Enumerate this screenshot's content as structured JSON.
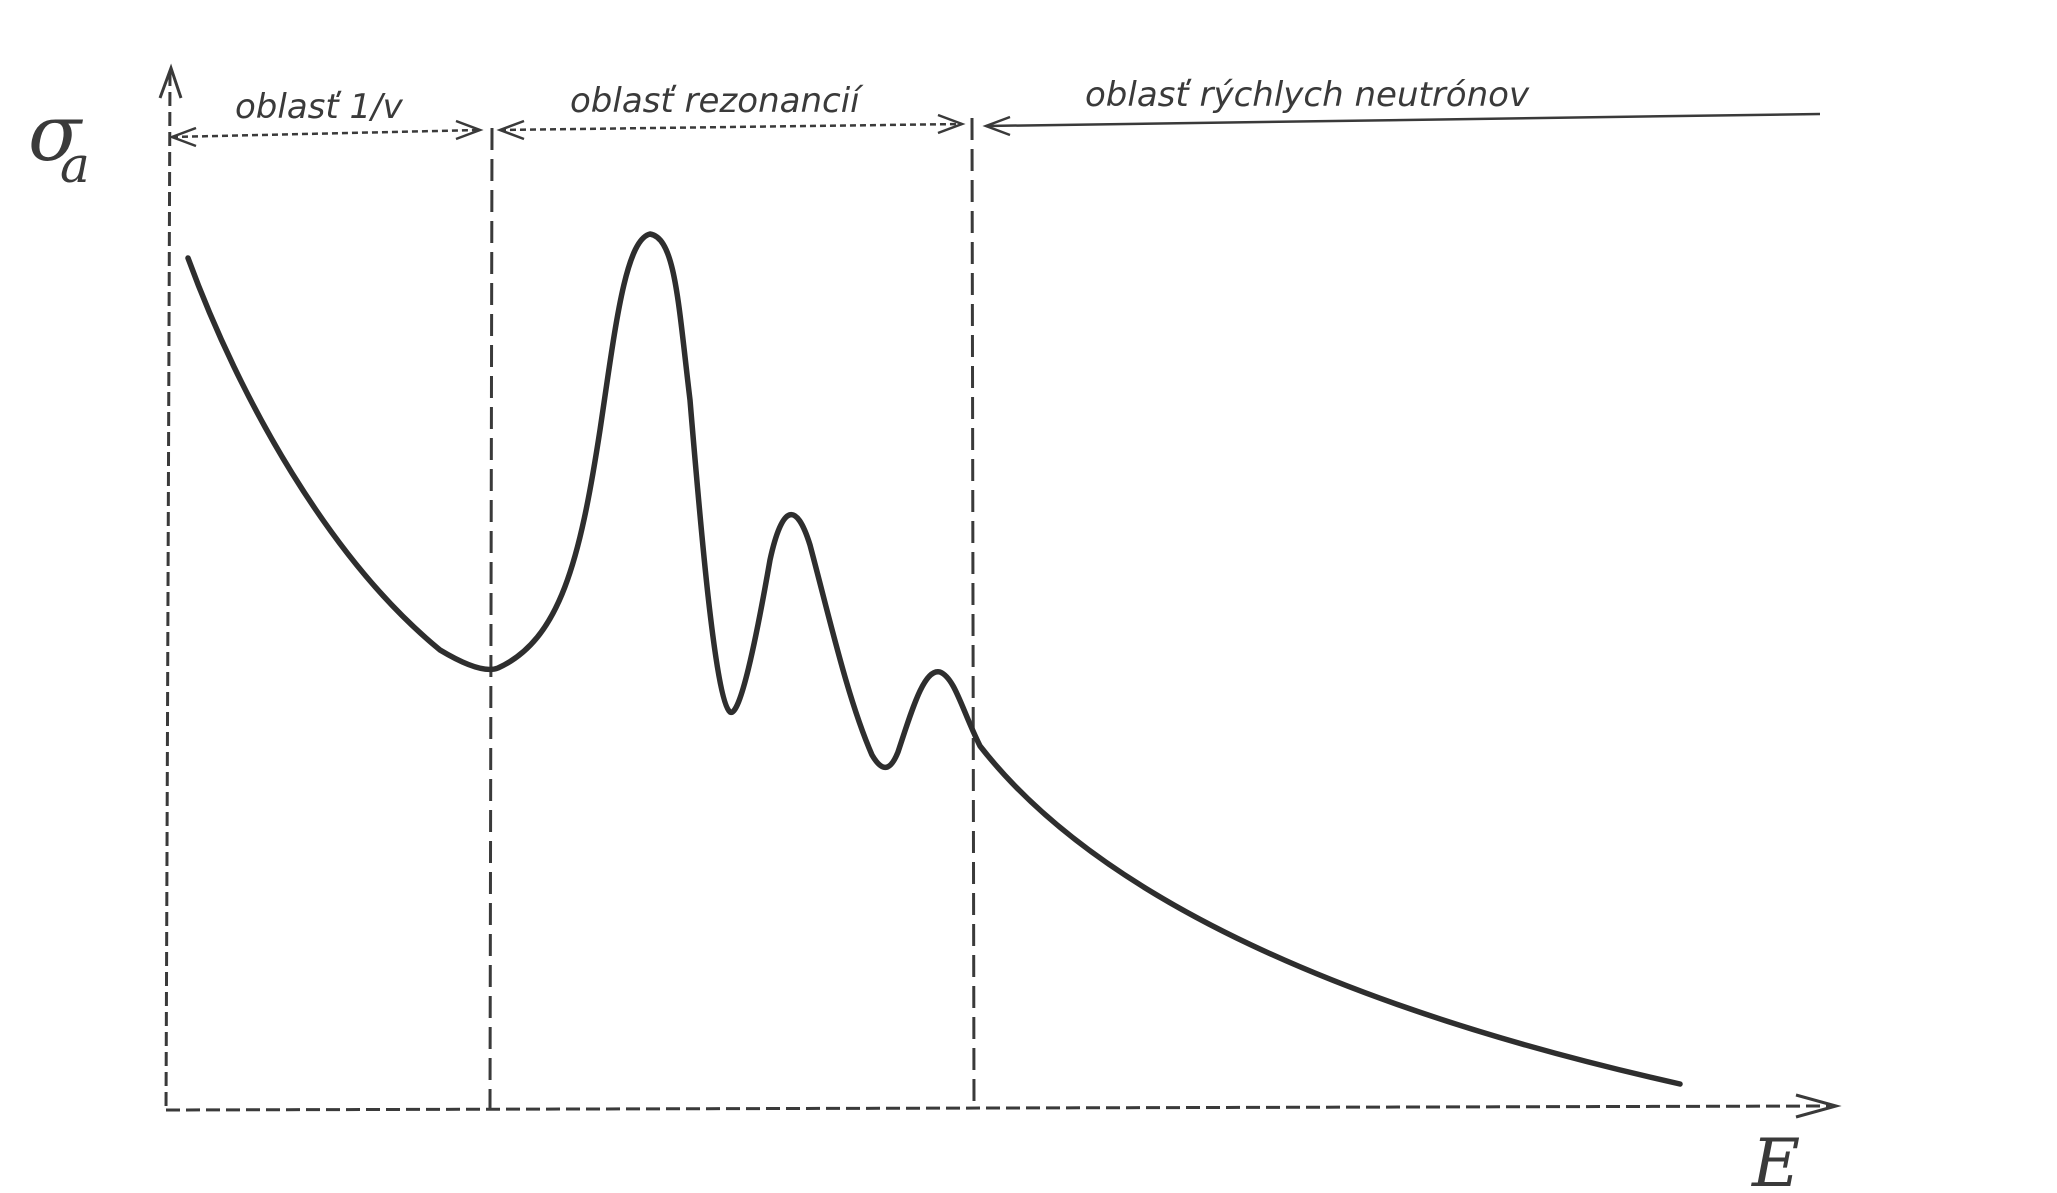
{
  "axes": {
    "y_symbol": "σ",
    "y_subscript": "a",
    "x_symbol": "E"
  },
  "regions": [
    {
      "label": "oblasť 1/v"
    },
    {
      "label": "oblasť rezonancií"
    },
    {
      "label": "oblasť rýchlych neutrónov"
    }
  ],
  "colors": {
    "ink": "#3a3a3a",
    "curve": "#2e2e2e",
    "background": "#ffffff"
  }
}
